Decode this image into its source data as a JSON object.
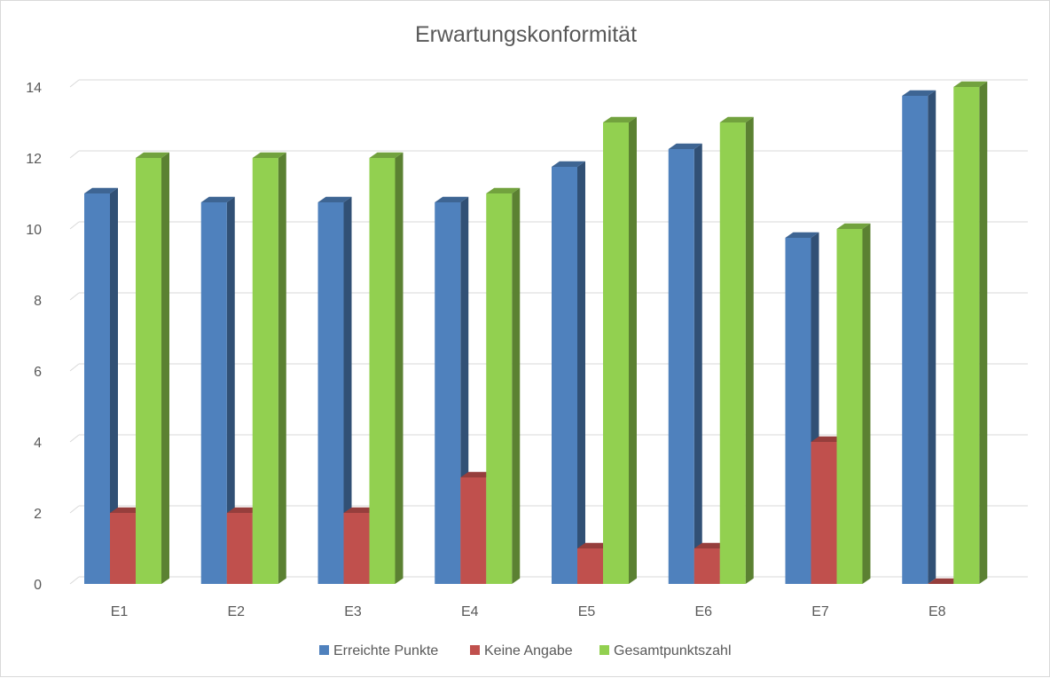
{
  "chart_data": {
    "type": "bar",
    "title": "Erwartungskonformität",
    "categories": [
      "E1",
      "E2",
      "E3",
      "E4",
      "E5",
      "E6",
      "E7",
      "E8"
    ],
    "series": [
      {
        "name": "Erreichte Punkte",
        "values": [
          11,
          10.75,
          10.75,
          10.75,
          11.75,
          12.25,
          9.75,
          13.75
        ],
        "color": "#4f81bd"
      },
      {
        "name": "Keine Angabe",
        "values": [
          2,
          2,
          2,
          3,
          1,
          1,
          4,
          0
        ],
        "color": "#c0504d"
      },
      {
        "name": "Gesamtpunktszahl",
        "values": [
          12,
          12,
          12,
          11,
          13,
          13,
          10,
          14
        ],
        "color": "#92d050"
      }
    ],
    "y_ticks": [
      "0",
      "2",
      "4",
      "6",
      "8",
      "10",
      "12",
      "14"
    ],
    "ylim": [
      0,
      14
    ],
    "grid": true,
    "legend_position": "bottom",
    "style": "3d-clustered-column"
  }
}
